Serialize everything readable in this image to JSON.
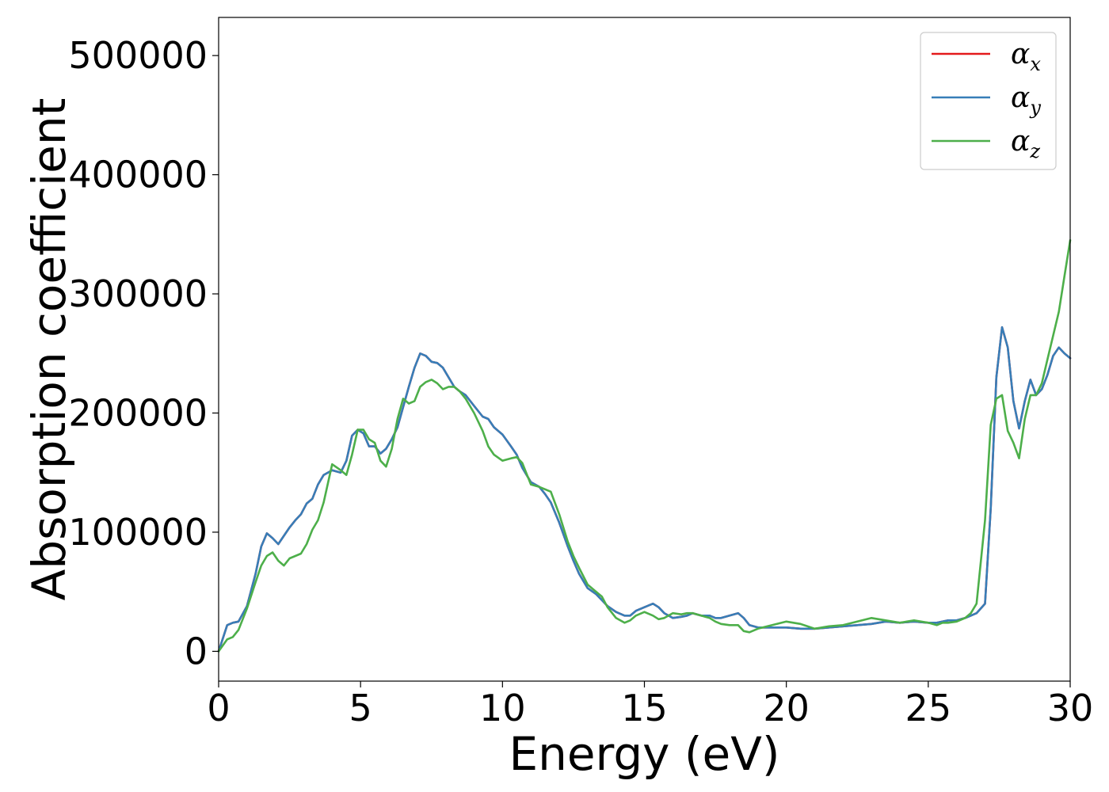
{
  "chart_data": {
    "type": "line",
    "title": "",
    "xlabel": "Energy (eV)",
    "ylabel": "Absorption coefficient",
    "xlim": [
      0,
      30
    ],
    "ylim": [
      -25000,
      532000
    ],
    "xticks": [
      0,
      5,
      10,
      15,
      20,
      25,
      30
    ],
    "xtick_labels": [
      "0",
      "5",
      "10",
      "15",
      "20",
      "25",
      "30"
    ],
    "yticks": [
      0,
      100000,
      200000,
      300000,
      400000,
      500000
    ],
    "ytick_labels": [
      "0",
      "100000",
      "200000",
      "300000",
      "400000",
      "500000"
    ],
    "grid": false,
    "legend_position": "top-right",
    "series": [
      {
        "name": "α_x",
        "legend_symbol": "α",
        "legend_sub": "x",
        "color": "#e41a1c",
        "x": [
          0,
          0.3,
          0.5,
          0.7,
          1.0,
          1.3,
          1.5,
          1.7,
          1.9,
          2.1,
          2.3,
          2.5,
          2.7,
          2.9,
          3.1,
          3.3,
          3.5,
          3.7,
          4.0,
          4.3,
          4.5,
          4.7,
          4.9,
          5.1,
          5.3,
          5.5,
          5.7,
          5.9,
          6.1,
          6.3,
          6.5,
          6.7,
          6.9,
          7.1,
          7.3,
          7.5,
          7.7,
          7.9,
          8.1,
          8.3,
          8.5,
          8.7,
          9.0,
          9.3,
          9.5,
          9.7,
          10.0,
          10.3,
          10.5,
          10.7,
          11.0,
          11.3,
          11.5,
          11.7,
          12.0,
          12.3,
          12.5,
          12.7,
          13.0,
          13.3,
          13.5,
          13.7,
          14.0,
          14.3,
          14.5,
          14.7,
          15.0,
          15.3,
          15.5,
          15.7,
          16.0,
          16.3,
          16.5,
          16.7,
          17.0,
          17.3,
          17.5,
          17.7,
          18.0,
          18.3,
          18.5,
          18.7,
          19.0,
          19.5,
          20.0,
          20.5,
          21.0,
          21.5,
          22.0,
          22.5,
          23.0,
          23.5,
          24.0,
          24.5,
          25.0,
          25.3,
          25.5,
          25.7,
          26.0,
          26.3,
          26.5,
          26.7,
          27.0,
          27.2,
          27.4,
          27.6,
          27.8,
          28.0,
          28.2,
          28.4,
          28.6,
          28.8,
          29.0,
          29.2,
          29.4,
          29.6,
          29.8,
          30.0
        ],
        "values": [
          0,
          22000,
          24000,
          25000,
          38000,
          65000,
          88000,
          99000,
          95000,
          90000,
          97000,
          104000,
          110000,
          115000,
          124000,
          128000,
          140000,
          148000,
          152000,
          150000,
          160000,
          181000,
          186000,
          183000,
          172000,
          172000,
          166000,
          170000,
          178000,
          188000,
          205000,
          222000,
          238000,
          250000,
          248000,
          243000,
          242000,
          238000,
          230000,
          222000,
          218000,
          215000,
          206000,
          197000,
          195000,
          188000,
          182000,
          172000,
          165000,
          154000,
          142000,
          138000,
          132000,
          125000,
          108000,
          88000,
          76000,
          65000,
          53000,
          48000,
          43000,
          38000,
          33000,
          30000,
          30000,
          34000,
          37000,
          40000,
          37000,
          32000,
          28000,
          29000,
          30000,
          32000,
          30000,
          30000,
          28000,
          28000,
          30000,
          32000,
          28000,
          22000,
          20000,
          20000,
          20000,
          19000,
          19000,
          20000,
          21000,
          22000,
          23000,
          25000,
          24000,
          25000,
          24000,
          24000,
          25000,
          26000,
          26000,
          28000,
          30000,
          32000,
          40000,
          120000,
          230000,
          272000,
          255000,
          210000,
          187000,
          210000,
          228000,
          215000,
          220000,
          232000,
          248000,
          255000,
          250000,
          246000
        ]
      },
      {
        "name": "α_y",
        "legend_symbol": "α",
        "legend_sub": "y",
        "color": "#377eb8",
        "x": [
          0,
          0.3,
          0.5,
          0.7,
          1.0,
          1.3,
          1.5,
          1.7,
          1.9,
          2.1,
          2.3,
          2.5,
          2.7,
          2.9,
          3.1,
          3.3,
          3.5,
          3.7,
          4.0,
          4.3,
          4.5,
          4.7,
          4.9,
          5.1,
          5.3,
          5.5,
          5.7,
          5.9,
          6.1,
          6.3,
          6.5,
          6.7,
          6.9,
          7.1,
          7.3,
          7.5,
          7.7,
          7.9,
          8.1,
          8.3,
          8.5,
          8.7,
          9.0,
          9.3,
          9.5,
          9.7,
          10.0,
          10.3,
          10.5,
          10.7,
          11.0,
          11.3,
          11.5,
          11.7,
          12.0,
          12.3,
          12.5,
          12.7,
          13.0,
          13.3,
          13.5,
          13.7,
          14.0,
          14.3,
          14.5,
          14.7,
          15.0,
          15.3,
          15.5,
          15.7,
          16.0,
          16.3,
          16.5,
          16.7,
          17.0,
          17.3,
          17.5,
          17.7,
          18.0,
          18.3,
          18.5,
          18.7,
          19.0,
          19.5,
          20.0,
          20.5,
          21.0,
          21.5,
          22.0,
          22.5,
          23.0,
          23.5,
          24.0,
          24.5,
          25.0,
          25.3,
          25.5,
          25.7,
          26.0,
          26.3,
          26.5,
          26.7,
          27.0,
          27.2,
          27.4,
          27.6,
          27.8,
          28.0,
          28.2,
          28.4,
          28.6,
          28.8,
          29.0,
          29.2,
          29.4,
          29.6,
          29.8,
          30.0
        ],
        "values": [
          0,
          22000,
          24000,
          25000,
          38000,
          65000,
          88000,
          99000,
          95000,
          90000,
          97000,
          104000,
          110000,
          115000,
          124000,
          128000,
          140000,
          148000,
          152000,
          150000,
          160000,
          181000,
          186000,
          183000,
          172000,
          172000,
          166000,
          170000,
          178000,
          188000,
          205000,
          222000,
          238000,
          250000,
          248000,
          243000,
          242000,
          238000,
          230000,
          222000,
          218000,
          215000,
          206000,
          197000,
          195000,
          188000,
          182000,
          172000,
          165000,
          154000,
          142000,
          138000,
          132000,
          125000,
          108000,
          88000,
          76000,
          65000,
          53000,
          48000,
          43000,
          38000,
          33000,
          30000,
          30000,
          34000,
          37000,
          40000,
          37000,
          32000,
          28000,
          29000,
          30000,
          32000,
          30000,
          30000,
          28000,
          28000,
          30000,
          32000,
          28000,
          22000,
          20000,
          20000,
          20000,
          19000,
          19000,
          20000,
          21000,
          22000,
          23000,
          25000,
          24000,
          25000,
          24000,
          24000,
          25000,
          26000,
          26000,
          28000,
          30000,
          32000,
          40000,
          120000,
          230000,
          272000,
          255000,
          210000,
          187000,
          210000,
          228000,
          215000,
          220000,
          232000,
          248000,
          255000,
          250000,
          246000
        ]
      },
      {
        "name": "α_z",
        "legend_symbol": "α",
        "legend_sub": "z",
        "color": "#4daf4a",
        "x": [
          0,
          0.3,
          0.5,
          0.7,
          1.0,
          1.3,
          1.5,
          1.7,
          1.9,
          2.1,
          2.3,
          2.5,
          2.7,
          2.9,
          3.1,
          3.3,
          3.5,
          3.7,
          4.0,
          4.3,
          4.5,
          4.7,
          4.9,
          5.1,
          5.3,
          5.5,
          5.7,
          5.9,
          6.1,
          6.3,
          6.5,
          6.7,
          6.9,
          7.1,
          7.3,
          7.5,
          7.7,
          7.9,
          8.1,
          8.3,
          8.5,
          8.7,
          9.0,
          9.3,
          9.5,
          9.7,
          10.0,
          10.3,
          10.5,
          10.7,
          11.0,
          11.3,
          11.5,
          11.7,
          12.0,
          12.3,
          12.5,
          12.7,
          13.0,
          13.3,
          13.5,
          13.7,
          14.0,
          14.3,
          14.5,
          14.7,
          15.0,
          15.3,
          15.5,
          15.7,
          16.0,
          16.3,
          16.5,
          16.7,
          17.0,
          17.3,
          17.5,
          17.7,
          18.0,
          18.3,
          18.5,
          18.7,
          19.0,
          19.5,
          20.0,
          20.5,
          21.0,
          21.5,
          22.0,
          22.5,
          23.0,
          23.5,
          24.0,
          24.5,
          25.0,
          25.3,
          25.5,
          25.7,
          26.0,
          26.3,
          26.5,
          26.7,
          27.0,
          27.2,
          27.4,
          27.6,
          27.8,
          28.0,
          28.2,
          28.4,
          28.6,
          28.8,
          29.0,
          29.2,
          29.4,
          29.6,
          29.8,
          30.0
        ],
        "values": [
          0,
          10000,
          12000,
          18000,
          36000,
          58000,
          72000,
          80000,
          83000,
          76000,
          72000,
          78000,
          80000,
          82000,
          90000,
          102000,
          110000,
          125000,
          157000,
          152000,
          148000,
          165000,
          186000,
          186000,
          178000,
          175000,
          160000,
          155000,
          170000,
          195000,
          212000,
          208000,
          210000,
          222000,
          226000,
          228000,
          225000,
          220000,
          222000,
          222000,
          218000,
          212000,
          200000,
          185000,
          172000,
          165000,
          160000,
          162000,
          163000,
          158000,
          140000,
          138000,
          136000,
          134000,
          115000,
          92000,
          80000,
          70000,
          56000,
          50000,
          46000,
          37000,
          28000,
          24000,
          26000,
          30000,
          33000,
          30000,
          27000,
          28000,
          32000,
          31000,
          32000,
          32000,
          30000,
          28000,
          25000,
          23000,
          22000,
          22000,
          17000,
          16000,
          19000,
          22000,
          25000,
          23000,
          19000,
          21000,
          22000,
          25000,
          28000,
          26000,
          24000,
          26000,
          24000,
          22000,
          24000,
          24000,
          25000,
          28000,
          32000,
          40000,
          110000,
          190000,
          212000,
          215000,
          185000,
          175000,
          162000,
          195000,
          215000,
          215000,
          225000,
          245000,
          265000,
          285000,
          315000,
          345000
        ]
      }
    ]
  }
}
